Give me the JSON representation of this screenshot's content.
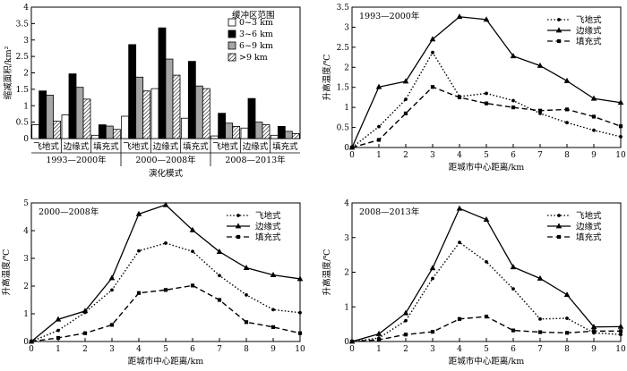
{
  "chart_data": [
    {
      "type": "bar",
      "ylabel": "缩减面积/km²",
      "xlabel": "演化模式",
      "ylim": [
        0,
        4
      ],
      "yticks": [
        0,
        0.5,
        1,
        1.5,
        2,
        2.5,
        3,
        3.5,
        4
      ],
      "legend_title": "缓冲区范围",
      "legend_position": "top-right",
      "groups": [
        "1993—2000年",
        "2000—2008年",
        "2008—2013年"
      ],
      "categories": [
        "飞地式",
        "边缘式",
        "填充式",
        "飞地式",
        "边缘式",
        "填充式",
        "飞地式",
        "边缘式",
        "填充式"
      ],
      "series": [
        {
          "name": "0~3 km",
          "color": "#ffffff",
          "values": [
            0.42,
            0.72,
            0.1,
            0.68,
            1.52,
            0.62,
            0.08,
            0.32,
            0.1
          ]
        },
        {
          "name": "3~6 km",
          "color": "#000000",
          "values": [
            1.45,
            1.97,
            0.42,
            2.86,
            3.37,
            2.35,
            0.77,
            1.22,
            0.37
          ]
        },
        {
          "name": "6~9 km",
          "color": "#a6a6a6",
          "values": [
            1.32,
            1.56,
            0.38,
            1.87,
            2.42,
            1.6,
            0.47,
            0.5,
            0.22
          ]
        },
        {
          "name": ">9 km",
          "color": "hatch",
          "values": [
            0.53,
            1.2,
            0.28,
            1.45,
            1.93,
            1.52,
            0.37,
            0.42,
            0.15
          ]
        }
      ]
    },
    {
      "type": "line",
      "title": "1993—2000年",
      "xlabel": "距城市中心距离/km",
      "ylabel": "升高温度/℃",
      "x": [
        0,
        1,
        2,
        3,
        4,
        5,
        6,
        7,
        8,
        9,
        10
      ],
      "xlim": [
        0,
        10
      ],
      "ylim": [
        0,
        3.5
      ],
      "yticks": [
        0,
        0.5,
        1,
        1.5,
        2,
        2.5,
        3,
        3.5
      ],
      "legend_position": "top-right",
      "series": [
        {
          "name": "飞地式",
          "style": "dotted",
          "marker": "circle",
          "values": [
            0,
            0.52,
            1.2,
            2.37,
            1.27,
            1.35,
            1.17,
            0.85,
            0.62,
            0.43,
            0.27
          ]
        },
        {
          "name": "边缘式",
          "style": "solid",
          "marker": "triangle",
          "values": [
            0,
            1.51,
            1.65,
            2.7,
            3.26,
            3.19,
            2.28,
            2.04,
            1.66,
            1.22,
            1.12
          ]
        },
        {
          "name": "填充式",
          "style": "dashed",
          "marker": "square",
          "values": [
            0,
            0.19,
            0.85,
            1.51,
            1.25,
            1.1,
            1.0,
            0.92,
            0.95,
            0.77,
            0.53
          ]
        }
      ]
    },
    {
      "type": "line",
      "title": "2000—2008年",
      "xlabel": "距城市中心距离/km",
      "ylabel": "升高温度/℃",
      "x": [
        0,
        1,
        2,
        3,
        4,
        5,
        6,
        7,
        8,
        9,
        10
      ],
      "xlim": [
        0,
        10
      ],
      "ylim": [
        0,
        5
      ],
      "yticks": [
        0,
        1,
        2,
        3,
        4,
        5
      ],
      "legend_position": "top-right",
      "series": [
        {
          "name": "飞地式",
          "style": "dotted",
          "marker": "circle",
          "values": [
            0,
            0.4,
            1.05,
            1.86,
            3.27,
            3.55,
            3.25,
            2.38,
            1.68,
            1.15,
            1.04
          ]
        },
        {
          "name": "边缘式",
          "style": "solid",
          "marker": "triangle",
          "values": [
            0,
            0.8,
            1.1,
            2.29,
            4.6,
            4.93,
            4.02,
            3.24,
            2.66,
            2.4,
            2.26
          ]
        },
        {
          "name": "填充式",
          "style": "dashed",
          "marker": "square",
          "values": [
            0,
            0.13,
            0.3,
            0.6,
            1.75,
            1.86,
            2.02,
            1.5,
            0.7,
            0.52,
            0.3
          ]
        }
      ]
    },
    {
      "type": "line",
      "title": "2008—2013年",
      "xlabel": "距城市中心距离/km",
      "ylabel": "升高温度/℃",
      "x": [
        0,
        1,
        2,
        3,
        4,
        5,
        6,
        7,
        8,
        9,
        10
      ],
      "xlim": [
        0,
        10
      ],
      "ylim": [
        0,
        4
      ],
      "yticks": [
        0,
        1,
        2,
        3,
        4
      ],
      "legend_position": "top-right",
      "series": [
        {
          "name": "飞地式",
          "style": "dotted",
          "marker": "circle",
          "values": [
            0,
            0.1,
            0.6,
            1.82,
            2.86,
            2.3,
            1.52,
            0.65,
            0.67,
            0.25,
            0.2
          ]
        },
        {
          "name": "边缘式",
          "style": "solid",
          "marker": "triangle",
          "values": [
            0,
            0.22,
            0.82,
            2.12,
            3.84,
            3.52,
            2.15,
            1.82,
            1.35,
            0.42,
            0.43
          ]
        },
        {
          "name": "填充式",
          "style": "dashed",
          "marker": "square",
          "values": [
            0,
            0.05,
            0.2,
            0.28,
            0.65,
            0.72,
            0.32,
            0.27,
            0.25,
            0.3,
            0.3
          ]
        }
      ]
    }
  ]
}
